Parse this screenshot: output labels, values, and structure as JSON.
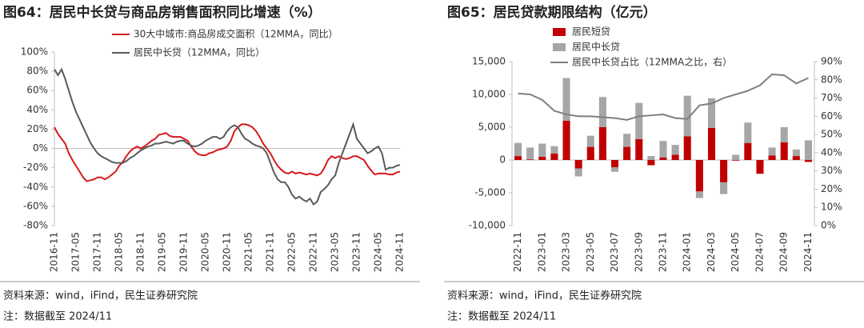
{
  "chart_data": [
    {
      "type": "line",
      "title": "图64：居民中长贷与商品房销售面积同比增速（%）",
      "categories": [
        "2016-11",
        null,
        null,
        null,
        null,
        null,
        "2017-05",
        null,
        null,
        null,
        null,
        null,
        "2017-11",
        null,
        null,
        null,
        null,
        null,
        "2018-05",
        null,
        null,
        null,
        null,
        null,
        "2018-11",
        null,
        null,
        null,
        null,
        null,
        "2019-05",
        null,
        null,
        null,
        null,
        null,
        "2019-11",
        null,
        null,
        null,
        null,
        null,
        "2020-05",
        null,
        null,
        null,
        null,
        null,
        "2020-11",
        null,
        null,
        null,
        null,
        null,
        "2021-05",
        null,
        null,
        null,
        null,
        null,
        "2021-11",
        null,
        null,
        null,
        null,
        null,
        "2022-05",
        null,
        null,
        null,
        null,
        null,
        "2022-11",
        null,
        null,
        null,
        null,
        null,
        "2023-05",
        null,
        null,
        null,
        null,
        null,
        "2023-11",
        null,
        null,
        null,
        null,
        null,
        "2024-05",
        null,
        null,
        null,
        null,
        null,
        "2024-11"
      ],
      "series": [
        {
          "name": "30大中城市:商品房成交面积（12MMA，同比）",
          "color": "#d7191c",
          "values": [
            22,
            15,
            10,
            5,
            -5,
            -12,
            -18,
            -24,
            -30,
            -34,
            -33,
            -32,
            -30,
            -30,
            -32,
            -30,
            -27,
            -24,
            -18,
            -14,
            -8,
            -3,
            0,
            2,
            0,
            2,
            5,
            8,
            10,
            14,
            15,
            16,
            13,
            12,
            12,
            12,
            10,
            8,
            2,
            -3,
            -6,
            -7,
            -7,
            -5,
            -4,
            -2,
            -1,
            0,
            2,
            8,
            18,
            22,
            25,
            25,
            24,
            22,
            18,
            12,
            5,
            0,
            -5,
            -12,
            -18,
            -22,
            -25,
            -26,
            -24,
            -26,
            -25,
            -26,
            -27,
            -26,
            -27,
            -28,
            -26,
            -20,
            -12,
            -8,
            -10,
            -8,
            -10,
            -11,
            -10,
            -8,
            -8,
            -10,
            -12,
            -18,
            -23,
            -27,
            -26,
            -26,
            -26,
            -27,
            -27,
            -25,
            -24
          ]
        },
        {
          "name": "居民中长贷（12MMA，同比）",
          "color": "#595959",
          "values": [
            82,
            76,
            82,
            72,
            60,
            48,
            38,
            30,
            22,
            14,
            6,
            0,
            -5,
            -8,
            -10,
            -12,
            -14,
            -15,
            -15,
            -15,
            -13,
            -10,
            -8,
            -5,
            -2,
            0,
            2,
            3,
            5,
            5,
            6,
            7,
            6,
            5,
            7,
            8,
            8,
            5,
            3,
            2,
            3,
            5,
            8,
            10,
            12,
            12,
            10,
            12,
            18,
            22,
            24,
            22,
            15,
            10,
            8,
            5,
            3,
            2,
            0,
            -5,
            -15,
            -25,
            -32,
            -35,
            -35,
            -40,
            -48,
            -52,
            -50,
            -53,
            -55,
            -52,
            -58,
            -55,
            -45,
            -42,
            -38,
            -32,
            -28,
            -15,
            -5,
            5,
            15,
            25,
            10,
            5,
            0,
            -5,
            -3,
            0,
            2,
            -5,
            -22,
            -20,
            -20,
            -18,
            -17
          ]
        }
      ],
      "ylim": [
        -80,
        100
      ],
      "yticks": [
        {
          "value": -80,
          "label": "-80%"
        },
        {
          "value": -60,
          "label": "-60%"
        },
        {
          "value": -40,
          "label": "-40%"
        },
        {
          "value": -20,
          "label": "-20%"
        },
        {
          "value": 0,
          "label": "0%"
        },
        {
          "value": 20,
          "label": "20%"
        },
        {
          "value": 40,
          "label": "40%"
        },
        {
          "value": 60,
          "label": "60%"
        },
        {
          "value": 80,
          "label": "80%"
        },
        {
          "value": 100,
          "label": "100%"
        }
      ],
      "legend": "top",
      "source": "资料来源：wind，iFind，民生证券研究院",
      "note": "注：数据截至 2024/11"
    },
    {
      "type": "bar",
      "stacked": true,
      "title": "图65：居民贷款期限结构（亿元）",
      "categories": [
        "2022-11",
        null,
        "2023-01",
        null,
        "2023-03",
        null,
        "2023-05",
        null,
        "2023-07",
        null,
        "2023-09",
        null,
        "2023-11",
        null,
        "2024-01",
        null,
        "2024-03",
        null,
        "2024-05",
        null,
        "2024-07",
        null,
        "2024-09",
        null,
        "2024-11"
      ],
      "series": [
        {
          "name": "居民短贷",
          "color": "#c00000",
          "values": [
            600,
            100,
            500,
            1000,
            6000,
            -1300,
            2000,
            5000,
            -1100,
            2000,
            3200,
            -800,
            400,
            800,
            3600,
            -4800,
            4900,
            -3400,
            -100,
            2600,
            -2100,
            700,
            2700,
            600,
            -300
          ]
        },
        {
          "name": "居民中长贷",
          "color": "#a6a6a6",
          "values": [
            2000,
            1800,
            2000,
            1100,
            6500,
            -1200,
            1700,
            4600,
            -700,
            2000,
            5500,
            600,
            2500,
            1500,
            6200,
            -1000,
            4500,
            -1800,
            800,
            3100,
            0,
            1200,
            2300,
            1000,
            3000
          ]
        },
        {
          "name": "居民中长贷占比（12MMA之比，右）",
          "color": "#7f7f7f",
          "type": "line",
          "axis": "y2",
          "values": [
            72.5,
            72,
            69,
            63,
            61,
            60,
            60,
            59.5,
            59,
            58,
            60,
            60.5,
            61,
            59,
            58.5,
            66,
            67,
            70,
            72,
            74,
            77,
            83,
            82.5,
            78,
            81
          ]
        }
      ],
      "ylim": [
        -10000,
        15000
      ],
      "yticks": [
        {
          "value": -10000,
          "label": "-10,000"
        },
        {
          "value": -5000,
          "label": "-5,000"
        },
        0,
        {
          "value": 5000,
          "label": "5,000"
        },
        {
          "value": 10000,
          "label": "10,000"
        },
        {
          "value": 15000,
          "label": "15,000"
        }
      ],
      "y2lim": [
        0,
        90
      ],
      "y2ticks": [
        {
          "value": 0,
          "label": "0%"
        },
        {
          "value": 10,
          "label": "10%"
        },
        {
          "value": 20,
          "label": "20%"
        },
        {
          "value": 30,
          "label": "30%"
        },
        {
          "value": 40,
          "label": "40%"
        },
        {
          "value": 50,
          "label": "50%"
        },
        {
          "value": 60,
          "label": "60%"
        },
        {
          "value": 70,
          "label": "70%"
        },
        {
          "value": 80,
          "label": "80%"
        },
        {
          "value": 90,
          "label": "90%"
        }
      ],
      "legend": "top-left",
      "source": "资料来源：wind，iFind，民生证券研究院",
      "note": "注：数据截至 2024/11"
    }
  ]
}
